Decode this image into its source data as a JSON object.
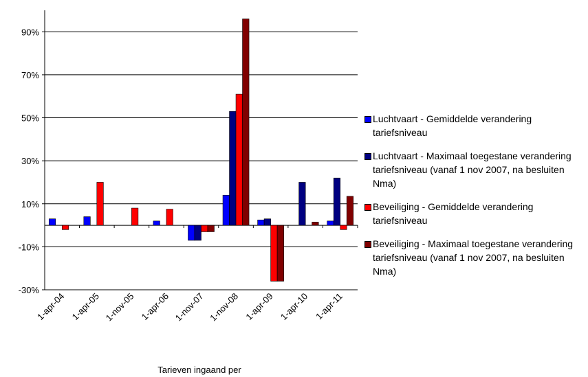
{
  "chart_data": {
    "type": "bar",
    "categories": [
      "1-apr-04",
      "1-apr-05",
      "1-nov-05",
      "1-apr-06",
      "1-nov-07",
      "1-nov-08",
      "1-apr-09",
      "1-apr-10",
      "1-apr-11"
    ],
    "series": [
      {
        "name": "Luchtvaart - Gemiddelde verandering tariefsniveau",
        "color": "#0000ff",
        "values": [
          3,
          4,
          null,
          2,
          -7,
          14,
          2.5,
          null,
          2
        ]
      },
      {
        "name": "Luchtvaart - Maximaal toegestane verandering tariefsniveau (vanaf 1 nov 2007, na besluiten Nma)",
        "color": "#000080",
        "values": [
          null,
          null,
          null,
          null,
          -7,
          53,
          3,
          20,
          22
        ]
      },
      {
        "name": "Beveiliging - Gemiddelde verandering tariefsniveau",
        "color": "#ff0000",
        "values": [
          -2,
          20,
          8,
          7.5,
          -3,
          61,
          -26,
          null,
          -2
        ]
      },
      {
        "name": "Beveiliging - Maximaal toegestane verandering tariefsniveau (vanaf 1 nov 2007, na besluiten Nma)",
        "color": "#800000",
        "values": [
          null,
          null,
          null,
          null,
          -3,
          96,
          -26,
          1.5,
          13.5
        ]
      }
    ],
    "x_label": "Tarieven ingaand per",
    "ylim": [
      -30,
      100
    ],
    "yticks": [
      {
        "value": -30,
        "label": "-30%"
      },
      {
        "value": -10,
        "label": "-10%"
      },
      {
        "value": 10,
        "label": "10%"
      },
      {
        "value": 30,
        "label": "30%"
      },
      {
        "value": 50,
        "label": "50%"
      },
      {
        "value": 70,
        "label": "70%"
      },
      {
        "value": 90,
        "label": "90%"
      }
    ],
    "grid": true,
    "legend": "right"
  }
}
